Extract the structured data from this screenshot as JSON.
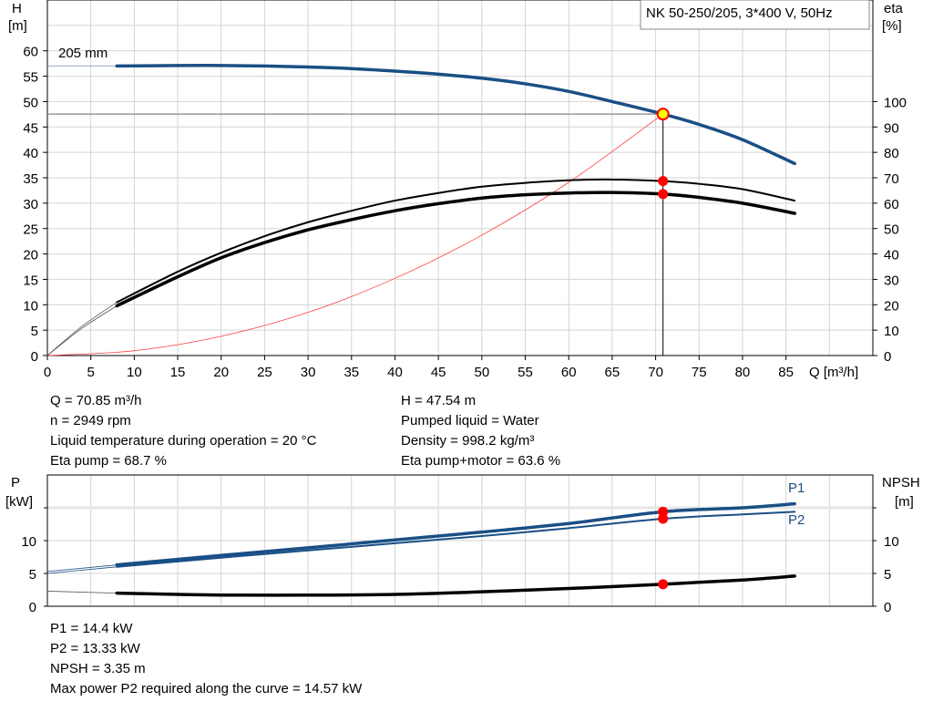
{
  "chart_data": [
    {
      "type": "line",
      "title": "NK 50-250/205, 3*400 V, 50Hz",
      "xlabel": "Q [m³/h]",
      "ylabel": "H [m]",
      "y2label": "eta [%]",
      "y_label_top": "H",
      "y_label_unit": "[m]",
      "y2_label_top": "eta",
      "y2_label_unit": "[%]",
      "xlim": [
        0,
        95
      ],
      "ylim": [
        0,
        70
      ],
      "y2lim": [
        0,
        140
      ],
      "grid": true,
      "x_ticks": [
        "0",
        "5",
        "10",
        "15",
        "20",
        "25",
        "30",
        "35",
        "40",
        "45",
        "50",
        "55",
        "60",
        "65",
        "70",
        "75",
        "80",
        "85"
      ],
      "y_ticks": [
        "0",
        "5",
        "10",
        "15",
        "20",
        "25",
        "30",
        "35",
        "40",
        "45",
        "50",
        "55",
        "60"
      ],
      "y2_ticks": [
        "0",
        "10",
        "20",
        "30",
        "40",
        "50",
        "60",
        "70",
        "80",
        "90",
        "100"
      ],
      "curve_label": "205 mm",
      "series": [
        {
          "name": "205 mm",
          "axis": "H",
          "color": "#1a4f85",
          "x": [
            8,
            15,
            20,
            25,
            30,
            35,
            40,
            45,
            50,
            55,
            60,
            65,
            70.85,
            75,
            80,
            86
          ],
          "y": [
            57,
            57.1,
            57.1,
            57,
            56.8,
            56.5,
            56,
            55.4,
            54.6,
            53.5,
            52,
            50,
            47.54,
            45.5,
            42.5,
            37.8
          ]
        },
        {
          "name": "",
          "axis": "H",
          "color": "#ff4040",
          "x": [
            0,
            10,
            20,
            30,
            40,
            50,
            60,
            70.85
          ],
          "y": [
            0,
            0.95,
            3.8,
            8.5,
            15.2,
            23.7,
            34.1,
            47.54
          ]
        },
        {
          "name": "",
          "axis": "eta",
          "color": "#000000",
          "x": [
            8,
            15,
            20,
            25,
            30,
            35,
            40,
            45,
            50,
            55,
            60,
            65,
            70.85,
            75,
            80,
            86
          ],
          "y": [
            21,
            33,
            40.5,
            47,
            52.5,
            57,
            61,
            64,
            66.5,
            68,
            69,
            69.3,
            68.7,
            67.6,
            65.5,
            61
          ]
        },
        {
          "name": "",
          "axis": "eta",
          "color": "#000000",
          "x": [
            8,
            15,
            20,
            25,
            30,
            35,
            40,
            45,
            50,
            55,
            60,
            65,
            70.85,
            75,
            80,
            86
          ],
          "y": [
            19.6,
            31,
            38.5,
            44.5,
            49.5,
            53.5,
            57,
            59.8,
            62,
            63.3,
            64,
            64.2,
            63.6,
            62.3,
            60,
            56
          ]
        }
      ],
      "duty_point": {
        "Q": 70.85,
        "H": 47.54,
        "eta_pump": 68.7,
        "eta_total": 63.6
      }
    },
    {
      "type": "line",
      "ylabel": "P [kW]",
      "y2label": "NPSH [m]",
      "y_label_top": "P",
      "y_label_unit": "[kW]",
      "y2_label_top": "NPSH",
      "y2_label_unit": "[m]",
      "xlim": [
        0,
        95
      ],
      "ylim": [
        0,
        20
      ],
      "grid": true,
      "y_ticks": [
        "0",
        "5",
        "10"
      ],
      "y2_ticks": [
        "0",
        "5",
        "10"
      ],
      "series": [
        {
          "name": "P1",
          "color": "#1a4f85",
          "x": [
            8,
            20,
            30,
            40,
            50,
            60,
            70.85,
            80,
            86
          ],
          "y": [
            6.3,
            7.75,
            8.9,
            10.1,
            11.3,
            12.6,
            14.4,
            15.0,
            15.6
          ]
        },
        {
          "name": "P2",
          "color": "#1a4f85",
          "x": [
            8,
            20,
            30,
            40,
            50,
            60,
            70.85,
            80,
            86
          ],
          "y": [
            6.0,
            7.4,
            8.5,
            9.6,
            10.7,
            11.9,
            13.33,
            14.0,
            14.4
          ]
        },
        {
          "name": "",
          "color": "#000000",
          "x": [
            8,
            15,
            20,
            30,
            40,
            50,
            60,
            70.85,
            80,
            86
          ],
          "y": [
            2.0,
            1.8,
            1.7,
            1.7,
            1.8,
            2.2,
            2.7,
            3.35,
            4.0,
            4.6
          ]
        }
      ],
      "duty_point": {
        "Q": 70.85,
        "P1": 14.4,
        "P2": 13.33,
        "NPSH": 3.35
      }
    }
  ],
  "info_left": [
    "Q = 70.85 m³/h",
    "n = 2949 rpm",
    "Liquid temperature during operation = 20 °C",
    "Eta pump = 68.7 %"
  ],
  "info_right": [
    "H = 47.54 m",
    "Pumped liquid = Water",
    "Density = 998.2 kg/m³",
    "Eta pump+motor = 63.6 %"
  ],
  "info_bottom": [
    "P1 = 14.4 kW",
    "P2 = 13.33 kW",
    "NPSH = 3.35 m",
    "Max power P2 required along the curve = 14.57 kW"
  ]
}
